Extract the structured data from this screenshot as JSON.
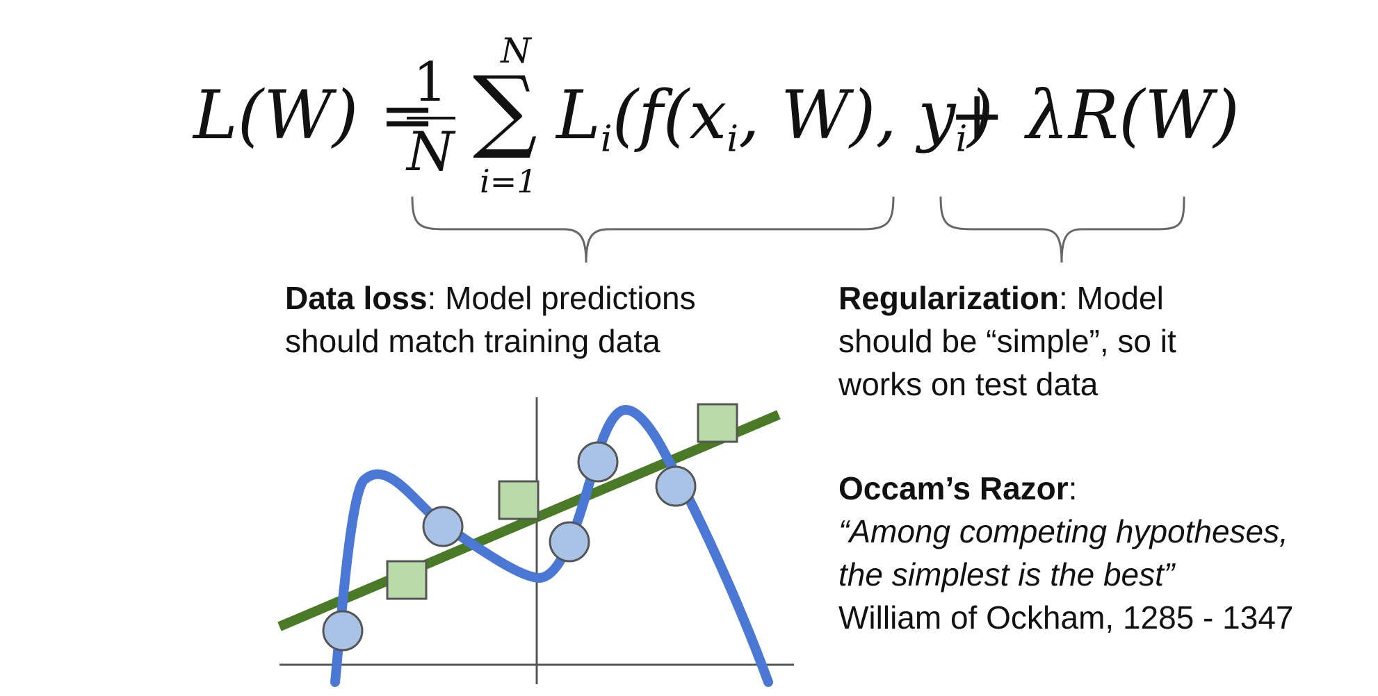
{
  "equation": {
    "lhs": "L(W) =",
    "frac_num": "1",
    "frac_den": "N",
    "sum_symbol": "∑",
    "sum_upper": "N",
    "sum_lower": "i=1",
    "main_prefix": "L",
    "main_sub_i": "i",
    "main_mid1": "(f(x",
    "main_mid2": ", W), y",
    "main_end": ")",
    "reg": "+ λR(W)"
  },
  "data_loss": {
    "title": "Data loss",
    "text_line1": ": Model predictions",
    "text_line2": "should match training data"
  },
  "regularization": {
    "title": "Regularization",
    "text_line1": ": Model",
    "text_line2": "should be “simple”, so it",
    "text_line3": "works on test data"
  },
  "occam": {
    "title": "Occam’s Razor",
    "colon": ":",
    "quote_line1": "“Among competing hypotheses,",
    "quote_line2": "the simplest is the best”",
    "attribution": "William of Ockham, 1285 - 1347"
  },
  "colors": {
    "line_green": "#4a7a26",
    "curve_blue": "#4a78d4",
    "circle_fill": "#a8c3e6",
    "square_fill": "#b9dba8",
    "axis": "#555555",
    "brace": "#666666"
  }
}
